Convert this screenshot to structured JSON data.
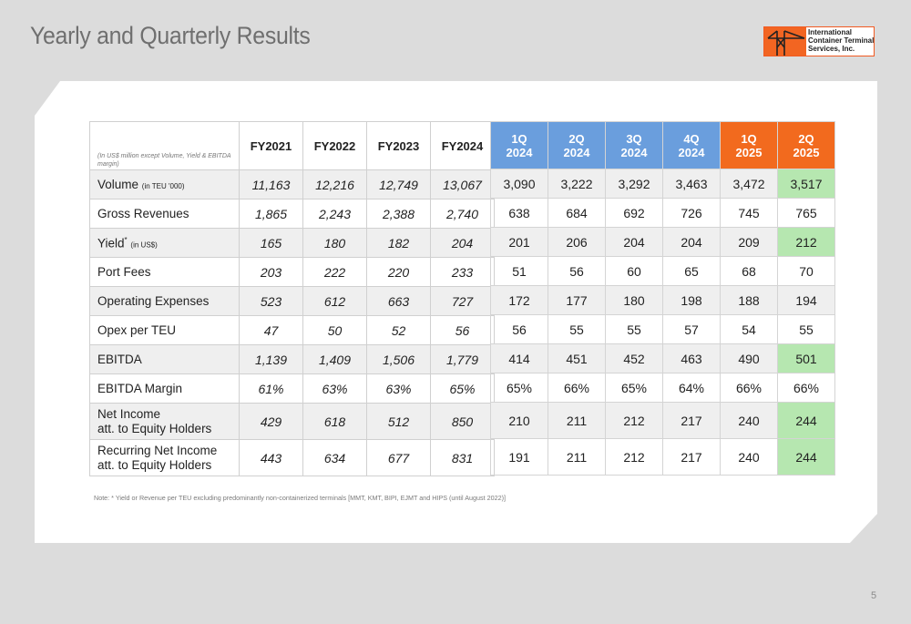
{
  "page": {
    "title": "Yearly and Quarterly Results",
    "page_number": "5"
  },
  "logo": {
    "lines": [
      "International",
      "Container Terminal",
      "Services, Inc."
    ],
    "accent": "#f26522"
  },
  "table": {
    "note": "(In US$ million except Volume, Yield & EBITDA margin)",
    "annual_headers": [
      "FY2021",
      "FY2022",
      "FY2023",
      "FY2024"
    ],
    "quarter_headers": [
      {
        "q": "1Q",
        "y": "2024"
      },
      {
        "q": "2Q",
        "y": "2024"
      },
      {
        "q": "3Q",
        "y": "2024"
      },
      {
        "q": "4Q",
        "y": "2024"
      },
      {
        "q": "1Q",
        "y": "2025"
      },
      {
        "q": "2Q",
        "y": "2025"
      }
    ],
    "rows": [
      {
        "label": "Volume",
        "unit": "(in TEU '000)",
        "annual": [
          "11,163",
          "12,216",
          "12,749",
          "13,067"
        ],
        "quarterly": [
          "3,090",
          "3,222",
          "3,292",
          "3,463",
          "3,472",
          "3,517"
        ]
      },
      {
        "label": "Gross Revenues",
        "annual": [
          "1,865",
          "2,243",
          "2,388",
          "2,740"
        ],
        "quarterly": [
          "638",
          "684",
          "692",
          "726",
          "745",
          "765"
        ]
      },
      {
        "label": "Yield",
        "sup": "*",
        "unit": "(in US$)",
        "annual": [
          "165",
          "180",
          "182",
          "204"
        ],
        "quarterly": [
          "201",
          "206",
          "204",
          "204",
          "209",
          "212"
        ]
      },
      {
        "label": "Port Fees",
        "annual": [
          "203",
          "222",
          "220",
          "233"
        ],
        "quarterly": [
          "51",
          "56",
          "60",
          "65",
          "68",
          "70"
        ]
      },
      {
        "label": "Operating Expenses",
        "annual": [
          "523",
          "612",
          "663",
          "727"
        ],
        "quarterly": [
          "172",
          "177",
          "180",
          "198",
          "188",
          "194"
        ]
      },
      {
        "label": "Opex per TEU",
        "annual": [
          "47",
          "50",
          "52",
          "56"
        ],
        "quarterly": [
          "56",
          "55",
          "55",
          "57",
          "54",
          "55"
        ]
      },
      {
        "label": "EBITDA",
        "annual": [
          "1,139",
          "1,409",
          "1,506",
          "1,779"
        ],
        "quarterly": [
          "414",
          "451",
          "452",
          "463",
          "490",
          "501"
        ]
      },
      {
        "label": "EBITDA Margin",
        "annual": [
          "61%",
          "63%",
          "63%",
          "65%"
        ],
        "quarterly": [
          "65%",
          "66%",
          "65%",
          "64%",
          "66%",
          "66%"
        ]
      },
      {
        "label_line1": "Net Income",
        "label_line2": "att. to Equity Holders",
        "annual": [
          "429",
          "618",
          "512",
          "850"
        ],
        "quarterly": [
          "210",
          "211",
          "212",
          "217",
          "240",
          "244"
        ]
      },
      {
        "label_line1": "Recurring Net Income",
        "label_line2": "att. to Equity Holders",
        "annual": [
          "443",
          "634",
          "677",
          "831"
        ],
        "quarterly": [
          "191",
          "211",
          "212",
          "217",
          "240",
          "244"
        ]
      }
    ]
  },
  "footnote": "Note: * Yield or Revenue per TEU excluding predominantly non-containerized terminals [MMT, KMT, BIPI, EJMT and HIPS (until August 2022)]",
  "colors": {
    "quarter_blue": "#6a9edd",
    "quarter_orange": "#f26a1e",
    "highlight_green": "#b6e7b0",
    "title_gray": "#6f6f6f"
  }
}
